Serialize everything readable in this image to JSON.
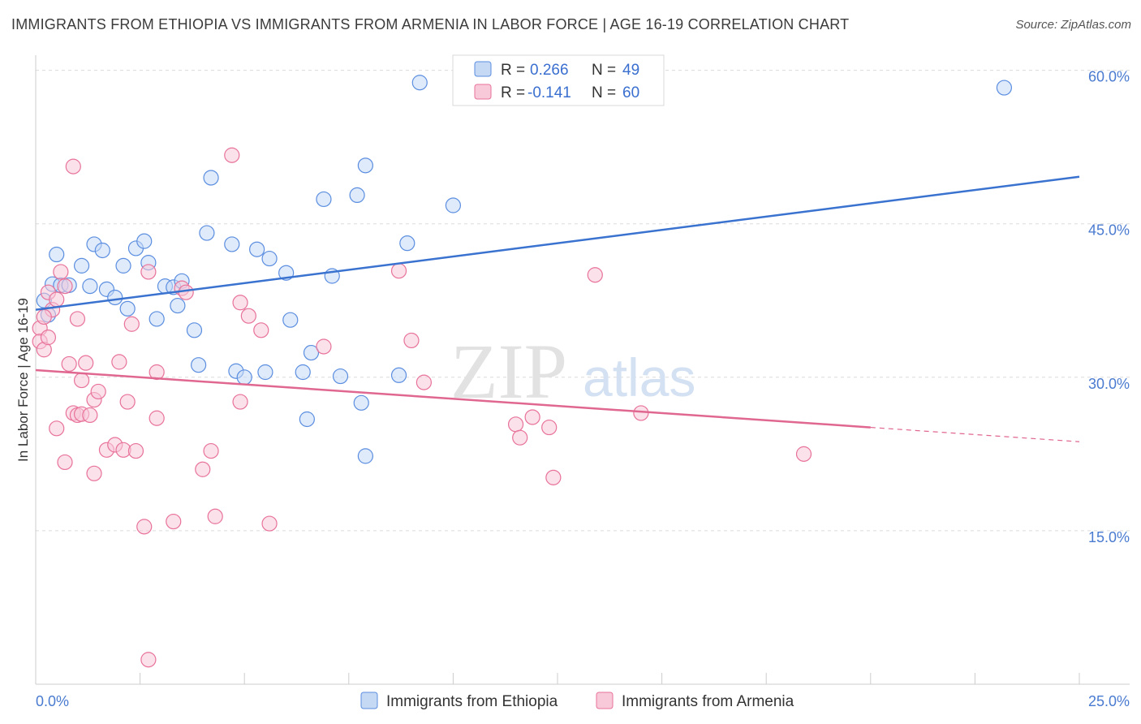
{
  "header": {
    "title": "IMMIGRANTS FROM ETHIOPIA VS IMMIGRANTS FROM ARMENIA IN LABOR FORCE | AGE 16-19 CORRELATION CHART",
    "source": "Source: ZipAtlas.com"
  },
  "watermark": {
    "zip": "ZIP",
    "atlas": "atlas"
  },
  "stats_legend": [
    {
      "r_label": "R =",
      "r_value": "0.266",
      "n_label": "N =",
      "n_value": "49"
    },
    {
      "r_label": "R =",
      "r_value": "-0.141",
      "n_label": "N =",
      "n_value": "60"
    }
  ],
  "chart_data": {
    "type": "scatter",
    "title": "IMMIGRANTS FROM ETHIOPIA VS IMMIGRANTS FROM ARMENIA IN LABOR FORCE | AGE 16-19 CORRELATION CHART",
    "xlabel": "",
    "ylabel": "In Labor Force | Age 16-19",
    "xlim": [
      0,
      25
    ],
    "ylim": [
      0,
      61
    ],
    "x_tick_labels": [
      "0.0%",
      "25.0%"
    ],
    "y_ticks": [
      15,
      30,
      45,
      60
    ],
    "y_tick_labels": [
      "15.0%",
      "30.0%",
      "45.0%",
      "60.0%"
    ],
    "grid": true,
    "legend_position": "bottom-center",
    "colors": {
      "ethiopia": "#5b8ee0",
      "ethiopia_fill": "#c5d9f5",
      "armenia": "#e8729a",
      "armenia_fill": "#f8c9d8"
    },
    "series": [
      {
        "name": "Immigrants from Ethiopia",
        "color": "#3a72d0",
        "trend": {
          "x": [
            0,
            25
          ],
          "y": [
            36.6,
            49.6
          ],
          "style": "solid"
        },
        "points": [
          [
            0.2,
            37.5
          ],
          [
            0.4,
            39.1
          ],
          [
            0.5,
            42.0
          ],
          [
            0.6,
            39.0
          ],
          [
            0.8,
            39.0
          ],
          [
            1.1,
            40.9
          ],
          [
            1.3,
            38.9
          ],
          [
            1.4,
            43.0
          ],
          [
            1.6,
            42.4
          ],
          [
            1.7,
            38.6
          ],
          [
            1.9,
            37.8
          ],
          [
            2.1,
            40.9
          ],
          [
            2.2,
            36.7
          ],
          [
            2.4,
            42.6
          ],
          [
            2.6,
            43.3
          ],
          [
            2.7,
            41.2
          ],
          [
            2.9,
            35.7
          ],
          [
            3.1,
            38.9
          ],
          [
            3.3,
            38.8
          ],
          [
            3.4,
            37.0
          ],
          [
            3.5,
            39.4
          ],
          [
            3.8,
            34.6
          ],
          [
            3.9,
            31.2
          ],
          [
            4.1,
            44.1
          ],
          [
            4.2,
            49.5
          ],
          [
            4.7,
            43.0
          ],
          [
            4.8,
            30.6
          ],
          [
            5.0,
            30.0
          ],
          [
            5.3,
            42.5
          ],
          [
            5.5,
            30.5
          ],
          [
            5.6,
            41.6
          ],
          [
            6.0,
            40.2
          ],
          [
            6.1,
            35.6
          ],
          [
            6.4,
            30.5
          ],
          [
            6.5,
            25.9
          ],
          [
            6.6,
            32.4
          ],
          [
            6.9,
            47.4
          ],
          [
            7.1,
            39.9
          ],
          [
            7.3,
            30.1
          ],
          [
            7.7,
            47.8
          ],
          [
            7.8,
            27.5
          ],
          [
            7.9,
            50.7
          ],
          [
            7.9,
            22.3
          ],
          [
            8.7,
            30.2
          ],
          [
            8.9,
            43.1
          ],
          [
            9.2,
            58.8
          ],
          [
            10.0,
            46.8
          ],
          [
            23.2,
            58.3
          ],
          [
            0.3,
            36.1
          ]
        ]
      },
      {
        "name": "Immigrants from Armenia",
        "color": "#e0678f",
        "trend": {
          "x": [
            0,
            20
          ],
          "y": [
            30.7,
            25.1
          ],
          "style": "solid"
        },
        "trend_extension": {
          "x": [
            20,
            25
          ],
          "y": [
            25.1,
            23.7
          ],
          "style": "dashed"
        },
        "points": [
          [
            0.1,
            34.8
          ],
          [
            0.1,
            33.5
          ],
          [
            0.2,
            32.7
          ],
          [
            0.3,
            33.9
          ],
          [
            0.3,
            38.3
          ],
          [
            0.4,
            36.6
          ],
          [
            0.5,
            25.0
          ],
          [
            0.5,
            37.6
          ],
          [
            0.6,
            40.3
          ],
          [
            0.7,
            38.9
          ],
          [
            0.7,
            21.7
          ],
          [
            0.8,
            31.3
          ],
          [
            0.9,
            26.5
          ],
          [
            0.9,
            50.6
          ],
          [
            1.0,
            35.7
          ],
          [
            1.0,
            26.3
          ],
          [
            1.1,
            26.4
          ],
          [
            1.1,
            29.7
          ],
          [
            1.2,
            31.4
          ],
          [
            1.3,
            26.3
          ],
          [
            1.4,
            20.6
          ],
          [
            1.4,
            27.8
          ],
          [
            1.5,
            28.6
          ],
          [
            1.7,
            22.9
          ],
          [
            1.9,
            23.4
          ],
          [
            2.0,
            31.5
          ],
          [
            2.1,
            22.9
          ],
          [
            2.2,
            27.6
          ],
          [
            2.3,
            35.2
          ],
          [
            2.4,
            22.8
          ],
          [
            2.6,
            15.4
          ],
          [
            2.7,
            40.3
          ],
          [
            2.7,
            2.4
          ],
          [
            2.9,
            30.5
          ],
          [
            2.9,
            26.0
          ],
          [
            3.3,
            15.9
          ],
          [
            3.5,
            38.7
          ],
          [
            3.6,
            38.3
          ],
          [
            4.0,
            21.0
          ],
          [
            4.2,
            22.8
          ],
          [
            4.3,
            16.4
          ],
          [
            4.7,
            51.7
          ],
          [
            4.9,
            27.6
          ],
          [
            4.9,
            37.3
          ],
          [
            5.1,
            36.0
          ],
          [
            5.4,
            34.6
          ],
          [
            5.6,
            15.7
          ],
          [
            6.9,
            33.0
          ],
          [
            8.7,
            40.4
          ],
          [
            9.0,
            33.6
          ],
          [
            9.3,
            29.5
          ],
          [
            11.5,
            25.4
          ],
          [
            11.6,
            24.1
          ],
          [
            11.9,
            26.1
          ],
          [
            12.3,
            25.1
          ],
          [
            12.4,
            20.2
          ],
          [
            13.4,
            40.0
          ],
          [
            14.5,
            26.5
          ],
          [
            18.4,
            22.5
          ],
          [
            0.2,
            35.9
          ]
        ]
      }
    ]
  }
}
